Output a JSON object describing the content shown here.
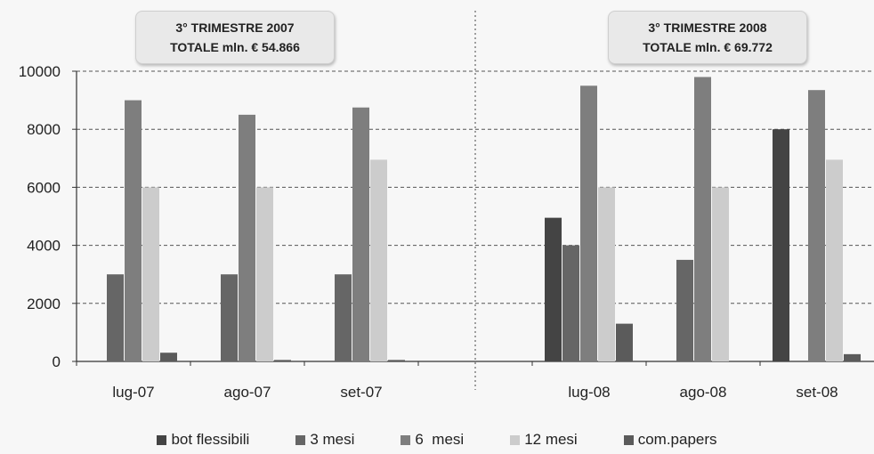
{
  "chart_data": {
    "type": "bar",
    "categories": [
      "lug-07",
      "ago-07",
      "set-07",
      "",
      "lug-08",
      "ago-08",
      "set-08"
    ],
    "series": [
      {
        "name": "bot flessibili",
        "color": "#444444",
        "values": [
          0,
          0,
          0,
          0,
          4950,
          0,
          8000
        ]
      },
      {
        "name": "3 mesi",
        "color": "#666666",
        "values": [
          3000,
          3000,
          3000,
          0,
          4000,
          3500,
          0
        ]
      },
      {
        "name": "6  mesi",
        "color": "#7e7e7e",
        "values": [
          9000,
          8500,
          8750,
          0,
          9500,
          9800,
          9350
        ]
      },
      {
        "name": "12 mesi",
        "color": "#cccccc",
        "values": [
          6000,
          6000,
          6950,
          0,
          6000,
          6000,
          6950
        ]
      },
      {
        "name": "com.papers",
        "color": "#5b5b5b",
        "values": [
          300,
          50,
          50,
          0,
          1300,
          0,
          250
        ]
      }
    ],
    "y_ticks": [
      "0",
      "2000",
      "4000",
      "6000",
      "8000",
      "10000"
    ],
    "ylim": [
      0,
      10000
    ],
    "grid": true,
    "legend_position": "bottom",
    "annotations": [
      {
        "line1": "3° TRIMESTRE 2007",
        "line2": "TOTALE  mln. € 54.866"
      },
      {
        "line1": "3° TRIMESTRE 2008",
        "line2": "TOTALE mln. € 69.772"
      }
    ]
  }
}
